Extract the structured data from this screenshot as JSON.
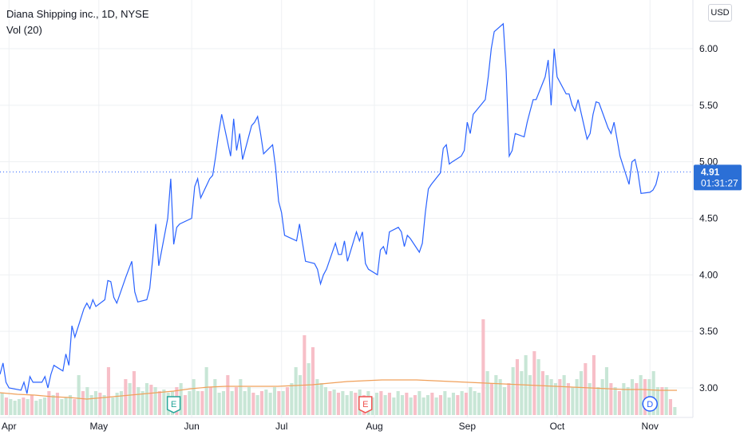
{
  "legend": {
    "symbol_line": "Diana Shipping inc., 1D, NYSE",
    "volume_label": "Vol (20)"
  },
  "currency": "USD",
  "last_price": {
    "value": "4.91",
    "countdown": "01:31:27"
  },
  "colors": {
    "price_line": "#2962ff",
    "grid": "#eef0f3",
    "vol_up": "#c8e6d6",
    "vol_down": "#f7bfc8",
    "vol_ma": "#f0a05a",
    "earnings": "#26a69a",
    "earnings_neg": "#ef5350",
    "dividend": "#2962ff",
    "label_bg": "#2b6fd6"
  },
  "chart_data": {
    "type": "line",
    "title": "Diana Shipping inc., 1D, NYSE",
    "x_ticks": [
      "Apr",
      "May",
      "Jun",
      "Jul",
      "Aug",
      "Sep",
      "Oct",
      "Nov"
    ],
    "y_ticks": [
      "3.00",
      "3.50",
      "4.00",
      "4.50",
      "5.00",
      "5.50",
      "6.00"
    ],
    "ylim": [
      2.8,
      6.3
    ],
    "x_start": "2021-03-29",
    "x_end": "2021-11-10",
    "grid": true,
    "series": [
      {
        "values": [
          [
            "2021-03-29",
            3.12
          ],
          [
            "2021-03-30",
            3.22
          ],
          [
            "2021-03-31",
            3.05
          ],
          [
            "2021-04-01",
            3.0
          ],
          [
            "2021-04-05",
            2.98
          ],
          [
            "2021-04-06",
            3.05
          ],
          [
            "2021-04-07",
            2.95
          ],
          [
            "2021-04-08",
            3.1
          ],
          [
            "2021-04-09",
            3.05
          ],
          [
            "2021-04-12",
            3.05
          ],
          [
            "2021-04-13",
            3.1
          ],
          [
            "2021-04-14",
            3.0
          ],
          [
            "2021-04-15",
            3.12
          ],
          [
            "2021-04-16",
            3.2
          ],
          [
            "2021-04-19",
            3.15
          ],
          [
            "2021-04-20",
            3.3
          ],
          [
            "2021-04-21",
            3.2
          ],
          [
            "2021-04-22",
            3.55
          ],
          [
            "2021-04-23",
            3.45
          ],
          [
            "2021-04-26",
            3.7
          ],
          [
            "2021-04-27",
            3.75
          ],
          [
            "2021-04-28",
            3.7
          ],
          [
            "2021-04-29",
            3.78
          ],
          [
            "2021-04-30",
            3.72
          ],
          [
            "2021-05-03",
            3.78
          ],
          [
            "2021-05-04",
            3.95
          ],
          [
            "2021-05-05",
            3.94
          ],
          [
            "2021-05-06",
            3.8
          ],
          [
            "2021-05-07",
            3.75
          ],
          [
            "2021-05-10",
            3.98
          ],
          [
            "2021-05-11",
            4.05
          ],
          [
            "2021-05-12",
            4.12
          ],
          [
            "2021-05-13",
            3.85
          ],
          [
            "2021-05-14",
            3.76
          ],
          [
            "2021-05-17",
            3.78
          ],
          [
            "2021-05-18",
            3.88
          ],
          [
            "2021-05-19",
            4.15
          ],
          [
            "2021-05-20",
            4.45
          ],
          [
            "2021-05-21",
            4.08
          ],
          [
            "2021-05-24",
            4.5
          ],
          [
            "2021-05-25",
            4.85
          ],
          [
            "2021-05-26",
            4.27
          ],
          [
            "2021-05-27",
            4.42
          ],
          [
            "2021-05-28",
            4.45
          ],
          [
            "2021-06-01",
            4.5
          ],
          [
            "2021-06-02",
            4.78
          ],
          [
            "2021-06-03",
            4.85
          ],
          [
            "2021-06-04",
            4.68
          ],
          [
            "2021-06-07",
            4.85
          ],
          [
            "2021-06-08",
            4.88
          ],
          [
            "2021-06-09",
            5.05
          ],
          [
            "2021-06-10",
            5.25
          ],
          [
            "2021-06-11",
            5.42
          ],
          [
            "2021-06-14",
            5.05
          ],
          [
            "2021-06-15",
            5.38
          ],
          [
            "2021-06-16",
            5.1
          ],
          [
            "2021-06-17",
            5.25
          ],
          [
            "2021-06-18",
            5.02
          ],
          [
            "2021-06-21",
            5.32
          ],
          [
            "2021-06-22",
            5.35
          ],
          [
            "2021-06-23",
            5.4
          ],
          [
            "2021-06-24",
            5.25
          ],
          [
            "2021-06-25",
            5.07
          ],
          [
            "2021-06-28",
            5.15
          ],
          [
            "2021-06-29",
            4.95
          ],
          [
            "2021-06-30",
            4.65
          ],
          [
            "2021-07-01",
            4.55
          ],
          [
            "2021-07-02",
            4.35
          ],
          [
            "2021-07-06",
            4.3
          ],
          [
            "2021-07-07",
            4.45
          ],
          [
            "2021-07-08",
            4.28
          ],
          [
            "2021-07-09",
            4.12
          ],
          [
            "2021-07-12",
            4.1
          ],
          [
            "2021-07-13",
            4.05
          ],
          [
            "2021-07-14",
            3.92
          ],
          [
            "2021-07-15",
            4.0
          ],
          [
            "2021-07-16",
            4.05
          ],
          [
            "2021-07-19",
            4.28
          ],
          [
            "2021-07-20",
            4.18
          ],
          [
            "2021-07-21",
            4.18
          ],
          [
            "2021-07-22",
            4.3
          ],
          [
            "2021-07-23",
            4.12
          ],
          [
            "2021-07-26",
            4.38
          ],
          [
            "2021-07-27",
            4.3
          ],
          [
            "2021-07-28",
            4.38
          ],
          [
            "2021-07-29",
            4.1
          ],
          [
            "2021-07-30",
            4.05
          ],
          [
            "2021-08-02",
            4.0
          ],
          [
            "2021-08-03",
            4.22
          ],
          [
            "2021-08-04",
            4.25
          ],
          [
            "2021-08-05",
            4.18
          ],
          [
            "2021-08-06",
            4.38
          ],
          [
            "2021-08-09",
            4.42
          ],
          [
            "2021-08-10",
            4.38
          ],
          [
            "2021-08-11",
            4.25
          ],
          [
            "2021-08-12",
            4.35
          ],
          [
            "2021-08-13",
            4.32
          ],
          [
            "2021-08-16",
            4.2
          ],
          [
            "2021-08-17",
            4.28
          ],
          [
            "2021-08-18",
            4.55
          ],
          [
            "2021-08-19",
            4.76
          ],
          [
            "2021-08-20",
            4.8
          ],
          [
            "2021-08-23",
            4.9
          ],
          [
            "2021-08-24",
            5.12
          ],
          [
            "2021-08-25",
            5.15
          ],
          [
            "2021-08-26",
            4.98
          ],
          [
            "2021-08-27",
            5.0
          ],
          [
            "2021-08-30",
            5.05
          ],
          [
            "2021-08-31",
            5.1
          ],
          [
            "2021-09-01",
            5.35
          ],
          [
            "2021-09-02",
            5.25
          ],
          [
            "2021-09-03",
            5.42
          ],
          [
            "2021-09-07",
            5.55
          ],
          [
            "2021-09-08",
            5.75
          ],
          [
            "2021-09-09",
            6.0
          ],
          [
            "2021-09-10",
            6.15
          ],
          [
            "2021-09-13",
            6.22
          ],
          [
            "2021-09-14",
            5.8
          ],
          [
            "2021-09-15",
            5.05
          ],
          [
            "2021-09-16",
            5.1
          ],
          [
            "2021-09-17",
            5.25
          ],
          [
            "2021-09-20",
            5.22
          ],
          [
            "2021-09-21",
            5.35
          ],
          [
            "2021-09-22",
            5.45
          ],
          [
            "2021-09-23",
            5.55
          ],
          [
            "2021-09-24",
            5.55
          ],
          [
            "2021-09-27",
            5.75
          ],
          [
            "2021-09-28",
            5.9
          ],
          [
            "2021-09-29",
            5.5
          ],
          [
            "2021-09-30",
            6.0
          ],
          [
            "2021-10-01",
            5.75
          ],
          [
            "2021-10-04",
            5.6
          ],
          [
            "2021-10-05",
            5.6
          ],
          [
            "2021-10-06",
            5.5
          ],
          [
            "2021-10-07",
            5.45
          ],
          [
            "2021-10-08",
            5.55
          ],
          [
            "2021-10-11",
            5.2
          ],
          [
            "2021-10-12",
            5.25
          ],
          [
            "2021-10-13",
            5.42
          ],
          [
            "2021-10-14",
            5.53
          ],
          [
            "2021-10-15",
            5.52
          ],
          [
            "2021-10-18",
            5.3
          ],
          [
            "2021-10-19",
            5.25
          ],
          [
            "2021-10-20",
            5.35
          ],
          [
            "2021-10-21",
            5.2
          ],
          [
            "2021-10-22",
            5.05
          ],
          [
            "2021-10-25",
            4.8
          ],
          [
            "2021-10-26",
            5.0
          ],
          [
            "2021-10-27",
            5.02
          ],
          [
            "2021-10-28",
            4.9
          ],
          [
            "2021-10-29",
            4.72
          ],
          [
            "2021-11-01",
            4.73
          ],
          [
            "2021-11-02",
            4.75
          ],
          [
            "2021-11-03",
            4.8
          ],
          [
            "2021-11-04",
            4.91
          ]
        ]
      }
    ],
    "volume": {
      "label": "Vol (20)",
      "bars_per_day": true,
      "heights": [
        0.28,
        0.22,
        0.2,
        0.18,
        0.2,
        0.22,
        0.2,
        0.25,
        0.18,
        0.2,
        0.22,
        0.3,
        0.25,
        0.28,
        0.2,
        0.22,
        0.25,
        0.2,
        0.5,
        0.3,
        0.35,
        0.25,
        0.3,
        0.28,
        0.25,
        0.6,
        0.22,
        0.28,
        0.3,
        0.45,
        0.4,
        0.55,
        0.35,
        0.3,
        0.4,
        0.38,
        0.35,
        0.3,
        0.32,
        0.28,
        0.3,
        0.35,
        0.4,
        0.25,
        0.3,
        0.45,
        0.3,
        0.3,
        0.6,
        0.35,
        0.45,
        0.28,
        0.3,
        0.5,
        0.3,
        0.35,
        0.45,
        0.3,
        0.35,
        0.28,
        0.25,
        0.3,
        0.32,
        0.28,
        0.35,
        0.3,
        0.3,
        0.35,
        0.4,
        0.6,
        0.5,
        1.0,
        0.65,
        0.85,
        0.45,
        0.4,
        0.35,
        0.3,
        0.32,
        0.28,
        0.3,
        0.25,
        0.3,
        0.28,
        0.32,
        0.25,
        0.3,
        0.22,
        0.28,
        0.3,
        0.25,
        0.28,
        0.22,
        0.3,
        0.25,
        0.28,
        0.22,
        0.25,
        0.3,
        0.22,
        0.25,
        0.28,
        0.22,
        0.25,
        0.3,
        0.22,
        0.28,
        0.25,
        0.3,
        0.28,
        0.35,
        0.3,
        0.28,
        1.2,
        0.55,
        0.4,
        0.5,
        0.45,
        0.35,
        0.4,
        0.6,
        0.7,
        0.55,
        0.75,
        0.5,
        0.8,
        0.7,
        0.55,
        0.5,
        0.45,
        0.4,
        0.45,
        0.5,
        0.4,
        0.35,
        0.45,
        0.55,
        0.65,
        0.4,
        0.75,
        0.35,
        0.45,
        0.6,
        0.4,
        0.35,
        0.3,
        0.4,
        0.35,
        0.45,
        0.4,
        0.5,
        0.45,
        0.45,
        0.55,
        0.35,
        0.35,
        0.35,
        0.2,
        0.1
      ],
      "ma": [
        0.28,
        0.26,
        0.25,
        0.23,
        0.22,
        0.2,
        0.22,
        0.24,
        0.26,
        0.28,
        0.3,
        0.33,
        0.35,
        0.36,
        0.36,
        0.36,
        0.36,
        0.37,
        0.38,
        0.4,
        0.42,
        0.43,
        0.44,
        0.44,
        0.44,
        0.43,
        0.42,
        0.41,
        0.4,
        0.39,
        0.38,
        0.37,
        0.36,
        0.35,
        0.34,
        0.33,
        0.32,
        0.32,
        0.31,
        0.31
      ]
    },
    "events": [
      {
        "type": "earnings",
        "date": "2021-05-26",
        "label": "E",
        "style": "positive"
      },
      {
        "type": "earnings",
        "date": "2021-07-29",
        "label": "E",
        "style": "negative"
      },
      {
        "type": "dividend",
        "date": "2021-11-01",
        "label": "D"
      }
    ],
    "last_value_line": 4.91
  }
}
